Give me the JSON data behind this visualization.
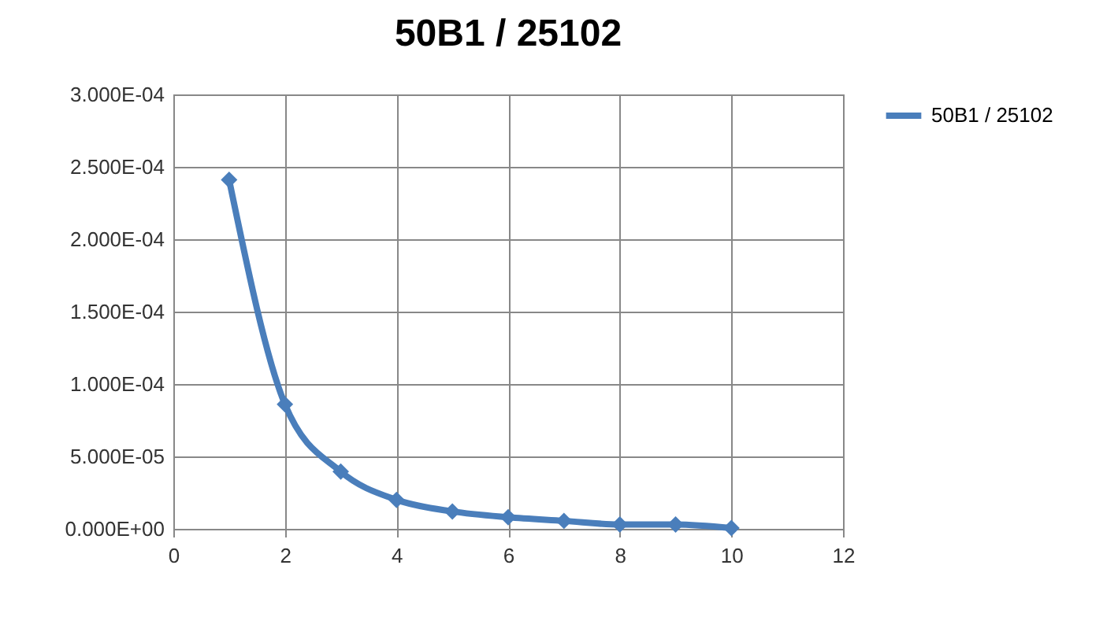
{
  "chart_data": {
    "type": "line",
    "title": "50B1 / 25102",
    "x": [
      1,
      2,
      3,
      4,
      5,
      6,
      7,
      8,
      9,
      10
    ],
    "series": [
      {
        "name": "50B1 / 25102",
        "color": "#4a7ebb",
        "values": [
          0.000241,
          8.6e-05,
          3.95e-05,
          2e-05,
          1.2e-05,
          8e-06,
          5.5e-06,
          3e-06,
          3e-06,
          5e-07
        ]
      }
    ],
    "xlim": [
      0,
      12
    ],
    "xticks": [
      0,
      2,
      4,
      6,
      8,
      10,
      12
    ],
    "ylim": [
      0,
      0.0003
    ],
    "yticks": [
      {
        "value": 0,
        "label": "0.000E+00"
      },
      {
        "value": 5e-05,
        "label": "5.000E-05"
      },
      {
        "value": 0.0001,
        "label": "1.000E-04"
      },
      {
        "value": 0.00015,
        "label": "1.500E-04"
      },
      {
        "value": 0.0002,
        "label": "2.000E-04"
      },
      {
        "value": 0.00025,
        "label": "2.500E-04"
      },
      {
        "value": 0.0003,
        "label": "3.000E-04"
      }
    ],
    "grid": true,
    "legend": "right",
    "marker": "diamond",
    "line_style": "solid"
  }
}
